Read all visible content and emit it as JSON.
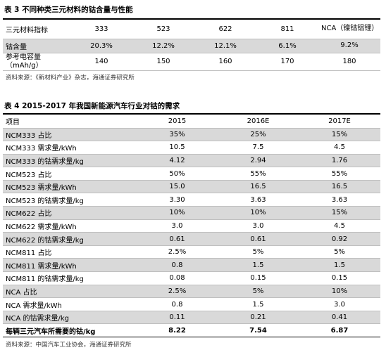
{
  "table3": {
    "title": "表 3 不同种类三元材料的钴含量与性能",
    "header": [
      "三元材料指标",
      "333",
      "523",
      "622",
      "811",
      "NCA（镍钴铝锂）"
    ],
    "rows": [
      [
        "钴含量",
        "20.3%",
        "12.2%",
        "12.1%",
        "6.1%",
        "9.2%"
      ],
      [
        "参考电容量（mAh/g）",
        "140",
        "150",
        "160",
        "170",
        "180"
      ]
    ],
    "source": "资料来源：《新材料产业》杂志，海通证券研究所"
  },
  "table4": {
    "title": "表 4 2015-2017 年我国新能源汽车行业对钴的需求",
    "header": [
      "项目",
      "2015",
      "2016E",
      "2017E"
    ],
    "rows": [
      [
        "NCM333 占比",
        "35%",
        "25%",
        "15%"
      ],
      [
        "NCM333 需求量/kWh",
        "10.5",
        "7.5",
        "4.5"
      ],
      [
        "NCM333 的钴需求量/kg",
        "4.12",
        "2.94",
        "1.76"
      ],
      [
        "NCM523 占比",
        "50%",
        "55%",
        "55%"
      ],
      [
        "NCM523 需求量/kWh",
        "15.0",
        "16.5",
        "16.5"
      ],
      [
        "NCM523 的钴需求量/kg",
        "3.30",
        "3.63",
        "3.63"
      ],
      [
        "NCM622 占比",
        "10%",
        "10%",
        "15%"
      ],
      [
        "NCM622 需求量/kWh",
        "3.0",
        "3.0",
        "4.5"
      ],
      [
        "NCM622 的钴需求量/kg",
        "0.61",
        "0.61",
        "0.92"
      ],
      [
        "NCM811 占比",
        "2.5%",
        "5%",
        "5%"
      ],
      [
        "NCM811 需求量/kWh",
        "0.8",
        "1.5",
        "1.5"
      ],
      [
        "NCM811 的钴需求量/kg",
        "0.08",
        "0.15",
        "0.15"
      ],
      [
        "NCA 占比",
        "2.5%",
        "5%",
        "10%"
      ],
      [
        "NCA 需求量/kWh",
        "0.8",
        "1.5",
        "3.0"
      ],
      [
        "NCA 的钴需求量/kg",
        "0.11",
        "0.21",
        "0.41"
      ]
    ],
    "total": [
      "每辆三元汽车所需要的钴/kg",
      "8.22",
      "7.54",
      "6.87"
    ],
    "source": "资料来源：中国汽车工业协会，海通证券研究所"
  }
}
